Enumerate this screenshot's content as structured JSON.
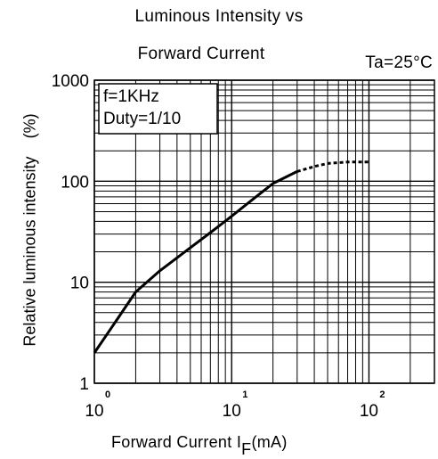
{
  "chart_data": {
    "type": "line",
    "title": "Luminous Intensity vs",
    "subtitle": "Forward Current",
    "condition": "Ta=25°C",
    "xlabel": "Forward Current I",
    "xlabel_subscript": "F",
    "xlabel_unit": "(mA)",
    "ylabel": "Relative luminous intensity",
    "yunit": "(%)",
    "xscale": "log",
    "yscale": "log",
    "xlim": [
      1,
      300
    ],
    "ylim": [
      1,
      1000
    ],
    "grid": true,
    "legend_box": [
      "f=1KHz",
      "Duty=1/10"
    ],
    "legend_placement": "top-left",
    "x_ticks": [
      {
        "value": 1,
        "base": "10",
        "exp": "0"
      },
      {
        "value": 10,
        "base": "10",
        "exp": "1"
      },
      {
        "value": 100,
        "base": "10",
        "exp": "2"
      }
    ],
    "y_ticks": [
      {
        "value": 1,
        "label": "1"
      },
      {
        "value": 10,
        "label": "10"
      },
      {
        "value": 100,
        "label": "100"
      },
      {
        "value": 1000,
        "label": "1000"
      }
    ],
    "series": [
      {
        "style": "solid",
        "x": [
          1,
          1.5,
          2,
          3,
          5,
          7,
          10,
          15,
          20,
          30
        ],
        "y": [
          2,
          4.5,
          8,
          13,
          22,
          31,
          45,
          70,
          95,
          125
        ]
      },
      {
        "style": "dotted",
        "x": [
          30,
          40,
          50,
          70,
          100
        ],
        "y": [
          125,
          140,
          150,
          155,
          155
        ]
      }
    ]
  }
}
